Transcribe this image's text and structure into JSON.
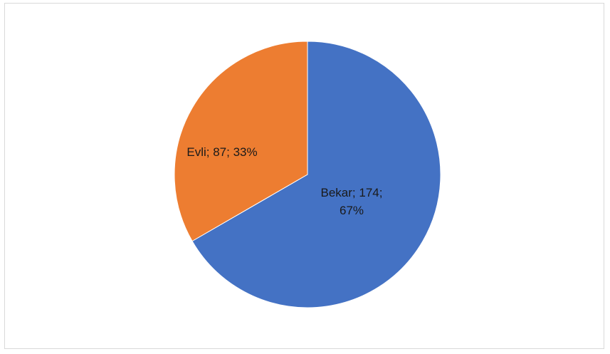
{
  "chart_data": {
    "type": "pie",
    "title": "",
    "legend": "none",
    "start_angle_deg": 0,
    "direction": "clockwise",
    "slices": [
      {
        "name": "Bekar",
        "value": 174,
        "percent": 67,
        "color": "#4472c4",
        "label_lines": [
          "Bekar; 174;",
          "67%"
        ]
      },
      {
        "name": "Evli",
        "value": 87,
        "percent": 33,
        "color": "#ed7d31",
        "label_lines": [
          "Evli; 87; 33%"
        ]
      }
    ]
  }
}
